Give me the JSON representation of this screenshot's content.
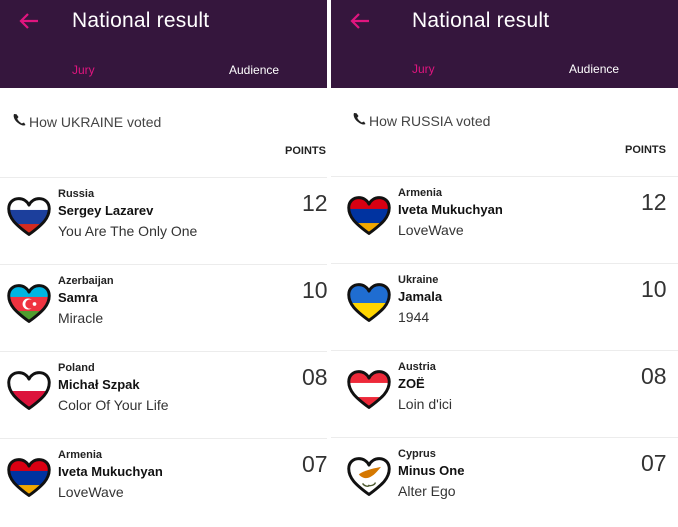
{
  "panels": [
    {
      "title": "National result",
      "tabs": {
        "jury": "Jury",
        "audience": "Audience"
      },
      "subheading": "How UKRAINE voted",
      "points_header": "POINTS",
      "rows": [
        {
          "country": "Russia",
          "artist": "Sergey Lazarev",
          "song": "You Are The Only One",
          "points": "12",
          "flag": "russia"
        },
        {
          "country": "Azerbaijan",
          "artist": "Samra",
          "song": "Miracle",
          "points": "10",
          "flag": "azerbaijan"
        },
        {
          "country": "Poland",
          "artist": "Michał Szpak",
          "song": "Color Of Your Life",
          "points": "08",
          "flag": "poland"
        },
        {
          "country": "Armenia",
          "artist": "Iveta Mukuchyan",
          "song": "LoveWave",
          "points": "07",
          "flag": "armenia"
        }
      ]
    },
    {
      "title": "National result",
      "tabs": {
        "jury": "Jury",
        "audience": "Audience"
      },
      "subheading": "How RUSSIA voted",
      "points_header": "POINTS",
      "rows": [
        {
          "country": "Armenia",
          "artist": "Iveta Mukuchyan",
          "song": "LoveWave",
          "points": "12",
          "flag": "armenia"
        },
        {
          "country": "Ukraine",
          "artist": "Jamala",
          "song": "1944",
          "points": "10",
          "flag": "ukraine"
        },
        {
          "country": "Austria",
          "artist": "ZOË",
          "song": "Loin d'ici",
          "points": "08",
          "flag": "austria"
        },
        {
          "country": "Cyprus",
          "artist": "Minus One",
          "song": "Alter Ego",
          "points": "07",
          "flag": "cyprus"
        }
      ]
    }
  ],
  "icons": {
    "back": "back-arrow-icon",
    "phone": "phone-icon",
    "flag_heart": "flag-heart-icon"
  },
  "colors": {
    "header_bg": "#35163d",
    "accent": "#e0157f",
    "tab_inactive": "#ffffff"
  }
}
